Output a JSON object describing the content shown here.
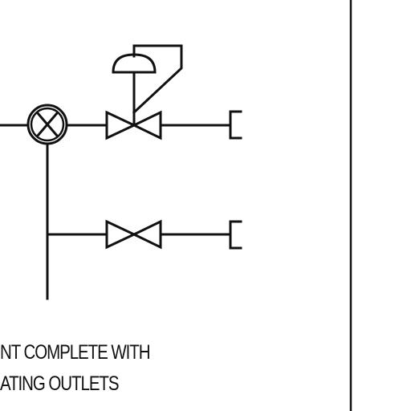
{
  "diagram": {
    "caption_lines": [
      "NT COMPLETE WITH",
      "ATING OUTLETS"
    ]
  },
  "colors": {
    "ink": "#111111",
    "background": "#ffffff"
  },
  "symbols": [
    "valve-cross-symbol",
    "control-valve-symbol",
    "diaphragm-actuator-symbol",
    "gate-valve-symbol",
    "outlet-cap-symbol"
  ]
}
